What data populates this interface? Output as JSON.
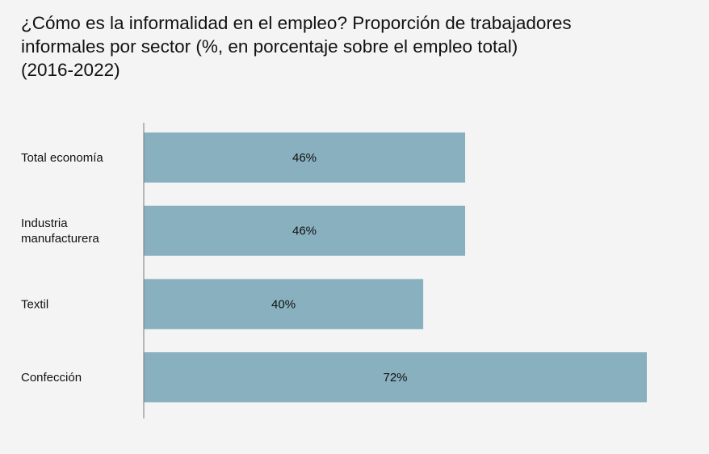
{
  "title_lines": [
    "¿Cómo es la informalidad en el empleo? Proporción de trabajadores",
    "informales por sector (%, en porcentaje sobre el empleo total)",
    "(2016-2022)"
  ],
  "colors": {
    "bar": "#88b0bf",
    "axis": "#7a7a7a",
    "background": "#f4f4f5"
  },
  "chart_data": {
    "type": "bar",
    "orientation": "horizontal",
    "title": "¿Cómo es la informalidad en el empleo? Proporción de trabajadores informales por sector (%, en porcentaje sobre el empleo total) (2016-2022)",
    "categories": [
      [
        "Total economía"
      ],
      [
        "Industria",
        "manufacturera"
      ],
      [
        "Textil"
      ],
      [
        "Confección"
      ]
    ],
    "values": [
      46,
      46,
      40,
      72
    ],
    "value_labels": [
      "46%",
      "46%",
      "40%",
      "72%"
    ],
    "xlim": [
      0,
      72
    ],
    "grid": false,
    "legend": "none"
  }
}
